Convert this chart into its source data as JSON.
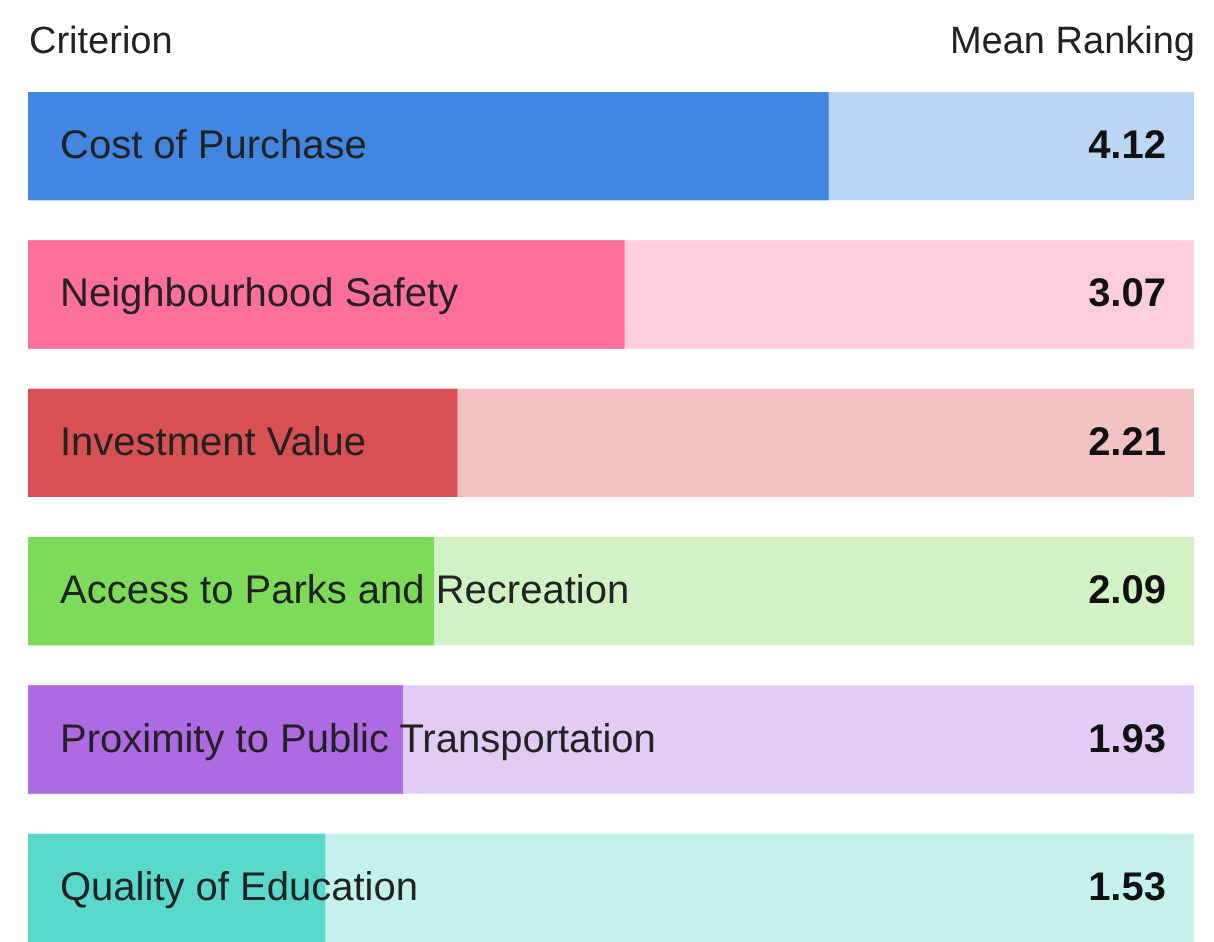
{
  "chart_data": {
    "type": "bar",
    "orientation": "horizontal",
    "ylabel": "Criterion",
    "xlabel": "Mean Ranking",
    "categories": [
      "Cost of Purchase",
      "Neighbourhood Safety",
      "Investment Value",
      "Access to Parks and Recreation",
      "Proximity to Public Transportation",
      "Quality of Education"
    ],
    "values": [
      4.12,
      3.07,
      2.21,
      2.09,
      1.93,
      1.53
    ],
    "colors": [
      "#4186e0",
      "#ff6f9c",
      "#d95052",
      "#7ddb5a",
      "#ad6ae3",
      "#59d8cc"
    ],
    "xlim": [
      0,
      6
    ],
    "data_labels": true
  }
}
